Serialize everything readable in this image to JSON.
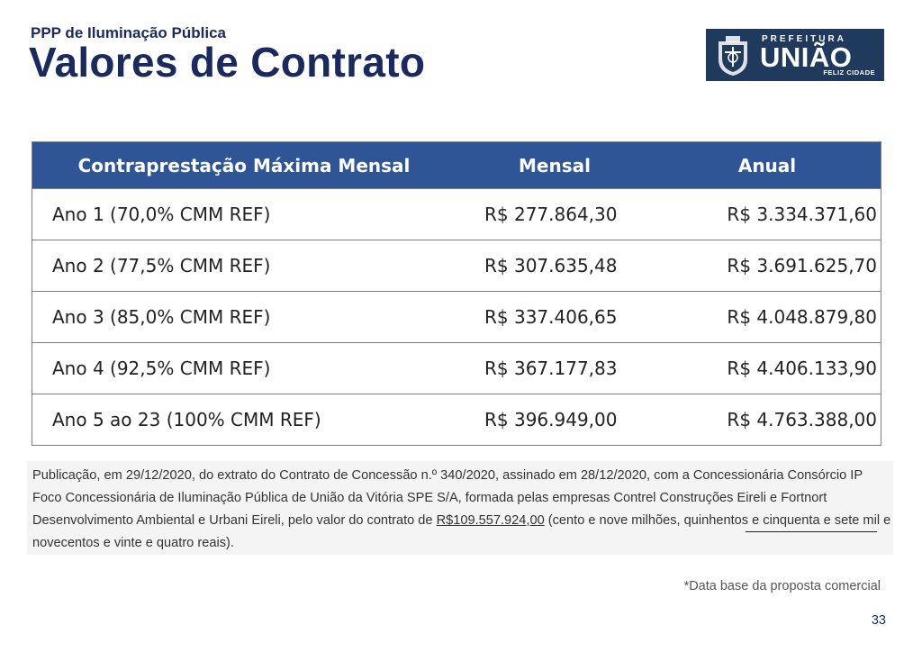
{
  "header": {
    "subtitle": "PPP de Iluminação Pública",
    "title": "Valores de Contrato"
  },
  "logo": {
    "prefeitura": "PREFEITURA",
    "name": "UNIÃO",
    "slogan": "FELIZ CIDADE",
    "background": "#1f3a5c"
  },
  "table": {
    "header_color": "#2f5597",
    "columns": [
      "Contraprestação Máxima Mensal",
      "Mensal",
      "Anual"
    ],
    "rows": [
      [
        "Ano 1 (70,0% CMM REF)",
        "R$ 277.864,30",
        "R$ 3.334.371,60"
      ],
      [
        "Ano 2 (77,5% CMM REF)",
        "R$ 307.635,48",
        "R$ 3.691.625,70"
      ],
      [
        "Ano 3 (85,0% CMM REF)",
        "R$ 337.406,65",
        "R$ 4.048.879,80"
      ],
      [
        "Ano 4 (92,5% CMM REF)",
        "R$ 367.177,83",
        "R$ 4.406.133,90"
      ],
      [
        "Ano 5 ao 23 (100% CMM REF)",
        "R$ 396.949,00",
        "R$ 4.763.388,00"
      ]
    ]
  },
  "publication": {
    "text_before": "Publicação, em 29/12/2020, do extrato do Contrato de Concessão n.º 340/2020, assinado em 28/12/2020, com a Concessionária Consórcio IP Foco Concessionária de Iluminação Pública de União da Vitória SPE S/A, formada pelas empresas Contrel Construções Eireli e Fortnort Desenvolvimento Ambiental e Urbani Eireli, pelo valor do contrato de ",
    "value": "R$109.557.924,00",
    "text_after": " (cento e nove milhões, quinhentos e cinquenta e sete mil e novecentos e vinte e quatro reais)."
  },
  "footnote": "*Data base da proposta comercial",
  "page_number": "33"
}
